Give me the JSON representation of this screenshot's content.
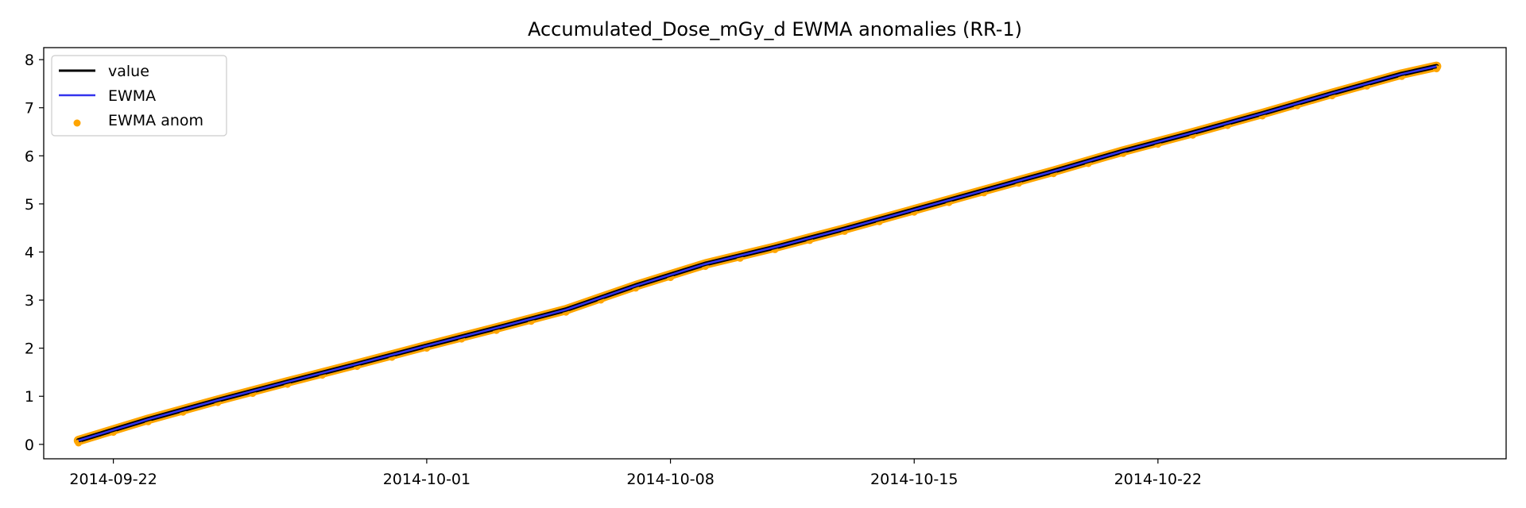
{
  "chart_data": {
    "type": "line",
    "title": "Accumulated_Dose_mGy_d EWMA anomalies (RR-1)",
    "xlabel": "",
    "ylabel": "",
    "x_type": "date",
    "xlim": [
      "2014-09-20",
      "2014-11-01"
    ],
    "ylim": [
      -0.3,
      8.25
    ],
    "x_ticks": [
      "2014-09-22",
      "2014-10-01",
      "2014-10-08",
      "2014-10-15",
      "2014-10-22"
    ],
    "y_ticks": [
      0,
      1,
      2,
      3,
      4,
      5,
      6,
      7,
      8
    ],
    "grid": false,
    "legend_position": "top-left",
    "series": [
      {
        "name": "value",
        "kind": "line",
        "color": "#000000",
        "points": [
          [
            "2014-09-21",
            0.08
          ],
          [
            "2014-09-23",
            0.52
          ],
          [
            "2014-09-25",
            0.92
          ],
          [
            "2014-09-27",
            1.3
          ],
          [
            "2014-09-29",
            1.67
          ],
          [
            "2014-10-01",
            2.05
          ],
          [
            "2014-10-03",
            2.42
          ],
          [
            "2014-10-05",
            2.8
          ],
          [
            "2014-10-07",
            3.3
          ],
          [
            "2014-10-09",
            3.75
          ],
          [
            "2014-10-11",
            4.1
          ],
          [
            "2014-10-13",
            4.48
          ],
          [
            "2014-10-15",
            4.88
          ],
          [
            "2014-10-17",
            5.28
          ],
          [
            "2014-10-19",
            5.68
          ],
          [
            "2014-10-21",
            6.1
          ],
          [
            "2014-10-23",
            6.48
          ],
          [
            "2014-10-25",
            6.88
          ],
          [
            "2014-10-27",
            7.3
          ],
          [
            "2014-10-29",
            7.7
          ],
          [
            "2014-10-30",
            7.86
          ]
        ]
      },
      {
        "name": "EWMA",
        "kind": "line",
        "color": "#3333ee",
        "points": [
          [
            "2014-09-21",
            0.08
          ],
          [
            "2014-09-23",
            0.52
          ],
          [
            "2014-09-25",
            0.92
          ],
          [
            "2014-09-27",
            1.3
          ],
          [
            "2014-09-29",
            1.67
          ],
          [
            "2014-10-01",
            2.05
          ],
          [
            "2014-10-03",
            2.42
          ],
          [
            "2014-10-05",
            2.8
          ],
          [
            "2014-10-07",
            3.3
          ],
          [
            "2014-10-09",
            3.75
          ],
          [
            "2014-10-11",
            4.1
          ],
          [
            "2014-10-13",
            4.48
          ],
          [
            "2014-10-15",
            4.88
          ],
          [
            "2014-10-17",
            5.28
          ],
          [
            "2014-10-19",
            5.68
          ],
          [
            "2014-10-21",
            6.1
          ],
          [
            "2014-10-23",
            6.48
          ],
          [
            "2014-10-25",
            6.88
          ],
          [
            "2014-10-27",
            7.3
          ],
          [
            "2014-10-29",
            7.7
          ],
          [
            "2014-10-30",
            7.86
          ]
        ]
      },
      {
        "name": "EWMA anom",
        "kind": "scatter",
        "color": "#ffa500",
        "points": [
          [
            "2014-09-21",
            0.08
          ],
          [
            "2014-09-22",
            0.3
          ],
          [
            "2014-09-23",
            0.52
          ],
          [
            "2014-09-24",
            0.72
          ],
          [
            "2014-09-25",
            0.92
          ],
          [
            "2014-09-26",
            1.11
          ],
          [
            "2014-09-27",
            1.3
          ],
          [
            "2014-09-28",
            1.49
          ],
          [
            "2014-09-29",
            1.67
          ],
          [
            "2014-09-30",
            1.86
          ],
          [
            "2014-10-01",
            2.05
          ],
          [
            "2014-10-02",
            2.24
          ],
          [
            "2014-10-03",
            2.42
          ],
          [
            "2014-10-04",
            2.61
          ],
          [
            "2014-10-05",
            2.8
          ],
          [
            "2014-10-06",
            3.05
          ],
          [
            "2014-10-07",
            3.3
          ],
          [
            "2014-10-08",
            3.52
          ],
          [
            "2014-10-09",
            3.75
          ],
          [
            "2014-10-10",
            3.92
          ],
          [
            "2014-10-11",
            4.1
          ],
          [
            "2014-10-12",
            4.29
          ],
          [
            "2014-10-13",
            4.48
          ],
          [
            "2014-10-14",
            4.68
          ],
          [
            "2014-10-15",
            4.88
          ],
          [
            "2014-10-16",
            5.08
          ],
          [
            "2014-10-17",
            5.28
          ],
          [
            "2014-10-18",
            5.48
          ],
          [
            "2014-10-19",
            5.68
          ],
          [
            "2014-10-20",
            5.89
          ],
          [
            "2014-10-21",
            6.1
          ],
          [
            "2014-10-22",
            6.29
          ],
          [
            "2014-10-23",
            6.48
          ],
          [
            "2014-10-24",
            6.68
          ],
          [
            "2014-10-25",
            6.88
          ],
          [
            "2014-10-26",
            7.09
          ],
          [
            "2014-10-27",
            7.3
          ],
          [
            "2014-10-28",
            7.5
          ],
          [
            "2014-10-29",
            7.7
          ],
          [
            "2014-10-30",
            7.86
          ]
        ]
      }
    ],
    "legend": [
      {
        "label": "value",
        "marker": "line",
        "color": "#000000"
      },
      {
        "label": "EWMA",
        "marker": "line",
        "color": "#3333ee"
      },
      {
        "label": "EWMA anom",
        "marker": "dot",
        "color": "#ffa500"
      }
    ]
  }
}
